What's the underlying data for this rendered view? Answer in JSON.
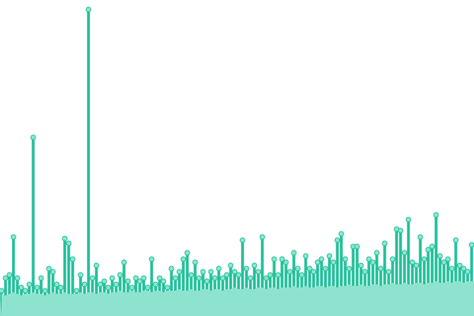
{
  "chart_data": {
    "type": "lollipop",
    "values": [
      8,
      12,
      13,
      25,
      12,
      9,
      8,
      10,
      56.5,
      9,
      12,
      8,
      15,
      14,
      10,
      9,
      24.5,
      23,
      18,
      8,
      13,
      10,
      97,
      12,
      16,
      10,
      11,
      9,
      12,
      10,
      13,
      17,
      11,
      9,
      12,
      11,
      12,
      9,
      18,
      10,
      12,
      11,
      9,
      15,
      12,
      14,
      18,
      20,
      13,
      17,
      12,
      14,
      11,
      14,
      12,
      15,
      12,
      13,
      16,
      14,
      13,
      24,
      15,
      12,
      16,
      14,
      25,
      12,
      13,
      18,
      13,
      18,
      17,
      14,
      20,
      15,
      13,
      19,
      15,
      14,
      17,
      18,
      15,
      19,
      17,
      24,
      26,
      18,
      15,
      22,
      22,
      16,
      14,
      18,
      17,
      20,
      15,
      23,
      14,
      18,
      27.5,
      27,
      20,
      30.5,
      17,
      16,
      25,
      18,
      21,
      22,
      32,
      19,
      17,
      18,
      15,
      24,
      16,
      15,
      14,
      22.5
    ],
    "area_values": [
      7,
      6.5,
      7,
      7.5,
      7,
      6.5,
      7,
      7,
      7.5,
      7,
      7,
      6.5,
      7,
      7.5,
      7,
      7,
      7.5,
      7,
      7,
      7,
      7.5,
      7,
      7.5,
      7.5,
      7,
      7.5,
      7.5,
      7,
      7.5,
      7.5,
      8,
      7.5,
      7.5,
      8,
      7.5,
      7.5,
      8,
      8,
      7.5,
      8,
      8,
      7.5,
      8,
      8,
      8,
      8.5,
      8,
      8,
      8.5,
      8,
      8,
      8.5,
      8.5,
      8,
      8.5,
      8.5,
      8,
      8.5,
      8.5,
      9,
      8.5,
      8.5,
      9,
      8.5,
      8.5,
      9,
      9,
      8.5,
      9,
      9,
      8.5,
      9,
      9,
      9,
      9.5,
      9,
      9,
      9.5,
      9,
      9,
      9.5,
      9.5,
      9,
      9.5,
      9.5,
      9,
      9.5,
      9.5,
      10,
      9.5,
      9.5,
      10,
      9.5,
      9.5,
      10,
      10,
      9.5,
      10,
      10,
      10.5,
      10,
      10,
      10.5,
      10,
      10,
      10.5,
      10.5,
      10,
      10.5,
      10.5,
      11,
      10.5,
      10.5,
      11,
      10.5,
      11,
      11,
      10.5,
      11,
      11
    ],
    "ylim": [
      0,
      100
    ],
    "color": "#1fbf99",
    "marker_color": "#8ee6cf",
    "area_color": "#8ee3cf"
  }
}
